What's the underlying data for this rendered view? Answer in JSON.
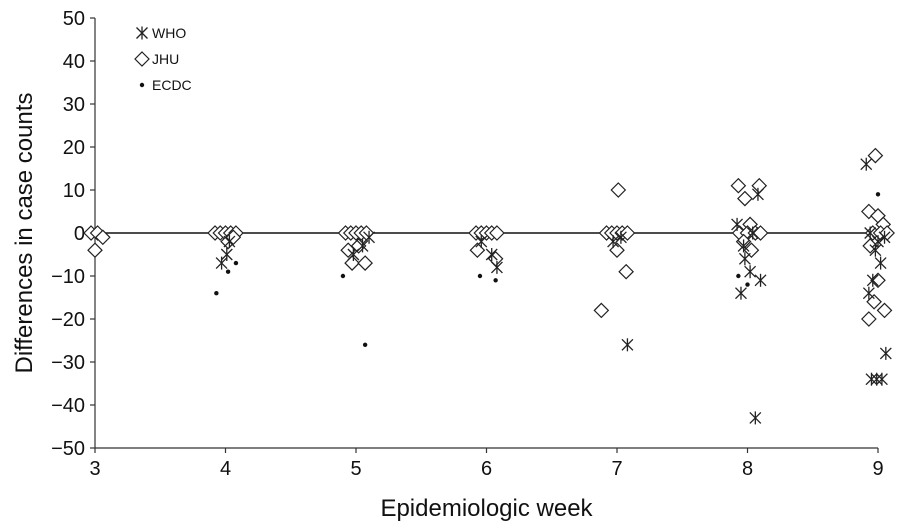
{
  "chart_data": {
    "type": "scatter",
    "xlabel": "Epidemiologic week",
    "ylabel": "Differences in case counts",
    "xlim": [
      3,
      9
    ],
    "ylim": [
      -50,
      50
    ],
    "x_ticks": [
      3,
      4,
      5,
      6,
      7,
      8,
      9
    ],
    "y_ticks": [
      50,
      40,
      30,
      20,
      10,
      0,
      -10,
      -20,
      -30,
      -40,
      -50
    ],
    "reference_line_y": 0,
    "grid": false,
    "legend": {
      "placement": "top-left"
    },
    "series": [
      {
        "name": "WHO",
        "marker": "asterisk",
        "color": "#222222",
        "points": [
          {
            "x": 3.97,
            "y": -7
          },
          {
            "x": 4.01,
            "y": -5
          },
          {
            "x": 4.03,
            "y": -2
          },
          {
            "x": 5.05,
            "y": -3
          },
          {
            "x": 4.98,
            "y": -5
          },
          {
            "x": 5.1,
            "y": -1
          },
          {
            "x": 6.08,
            "y": -8
          },
          {
            "x": 6.04,
            "y": -5
          },
          {
            "x": 5.96,
            "y": -2
          },
          {
            "x": 7.08,
            "y": -26
          },
          {
            "x": 6.97,
            "y": -2
          },
          {
            "x": 7.03,
            "y": -1
          },
          {
            "x": 8.06,
            "y": -43
          },
          {
            "x": 7.95,
            "y": -14
          },
          {
            "x": 8.1,
            "y": -11
          },
          {
            "x": 8.02,
            "y": -9
          },
          {
            "x": 7.98,
            "y": -6
          },
          {
            "x": 8.08,
            "y": 9
          },
          {
            "x": 7.92,
            "y": 2
          },
          {
            "x": 7.97,
            "y": -3
          },
          {
            "x": 8.04,
            "y": 0
          },
          {
            "x": 8.95,
            "y": -34
          },
          {
            "x": 9.03,
            "y": -34
          },
          {
            "x": 8.99,
            "y": -34
          },
          {
            "x": 9.06,
            "y": -28
          },
          {
            "x": 8.93,
            "y": -14
          },
          {
            "x": 8.96,
            "y": -11
          },
          {
            "x": 8.91,
            "y": 16
          },
          {
            "x": 9.02,
            "y": -7
          },
          {
            "x": 8.98,
            "y": -4
          },
          {
            "x": 9.05,
            "y": -1
          },
          {
            "x": 8.94,
            "y": 0
          },
          {
            "x": 9.0,
            "y": -2
          }
        ]
      },
      {
        "name": "JHU",
        "marker": "diamond",
        "color": "#222222",
        "points": [
          {
            "x": 2.97,
            "y": 0
          },
          {
            "x": 3.02,
            "y": 0
          },
          {
            "x": 3.06,
            "y": -1
          },
          {
            "x": 3.0,
            "y": -4
          },
          {
            "x": 3.92,
            "y": 0
          },
          {
            "x": 3.96,
            "y": 0
          },
          {
            "x": 4.0,
            "y": 0
          },
          {
            "x": 4.04,
            "y": 0
          },
          {
            "x": 4.08,
            "y": 0
          },
          {
            "x": 4.02,
            "y": -2
          },
          {
            "x": 4.06,
            "y": -1
          },
          {
            "x": 4.92,
            "y": 0
          },
          {
            "x": 4.96,
            "y": 0
          },
          {
            "x": 5.0,
            "y": 0
          },
          {
            "x": 5.04,
            "y": 0
          },
          {
            "x": 5.08,
            "y": 0
          },
          {
            "x": 4.94,
            "y": -4
          },
          {
            "x": 4.97,
            "y": -7
          },
          {
            "x": 5.07,
            "y": -7
          },
          {
            "x": 5.02,
            "y": -3
          },
          {
            "x": 5.92,
            "y": 0
          },
          {
            "x": 5.96,
            "y": 0
          },
          {
            "x": 6.0,
            "y": 0
          },
          {
            "x": 6.04,
            "y": 0
          },
          {
            "x": 6.08,
            "y": 0
          },
          {
            "x": 5.93,
            "y": -4
          },
          {
            "x": 6.07,
            "y": -6
          },
          {
            "x": 6.92,
            "y": 0
          },
          {
            "x": 6.96,
            "y": 0
          },
          {
            "x": 7.0,
            "y": 0
          },
          {
            "x": 7.04,
            "y": 0
          },
          {
            "x": 7.08,
            "y": 0
          },
          {
            "x": 7.01,
            "y": 10
          },
          {
            "x": 6.88,
            "y": -18
          },
          {
            "x": 7.07,
            "y": -9
          },
          {
            "x": 7.0,
            "y": -4
          },
          {
            "x": 7.93,
            "y": 11
          },
          {
            "x": 8.09,
            "y": 11
          },
          {
            "x": 7.98,
            "y": 8
          },
          {
            "x": 8.02,
            "y": 2
          },
          {
            "x": 7.94,
            "y": 0
          },
          {
            "x": 8.0,
            "y": 0
          },
          {
            "x": 8.06,
            "y": 0
          },
          {
            "x": 8.1,
            "y": 0
          },
          {
            "x": 8.03,
            "y": -4
          },
          {
            "x": 7.97,
            "y": -2
          },
          {
            "x": 8.98,
            "y": 18
          },
          {
            "x": 8.93,
            "y": 5
          },
          {
            "x": 9.0,
            "y": 4
          },
          {
            "x": 9.04,
            "y": 2
          },
          {
            "x": 8.96,
            "y": 0
          },
          {
            "x": 9.02,
            "y": 0
          },
          {
            "x": 9.07,
            "y": 0
          },
          {
            "x": 8.94,
            "y": -3
          },
          {
            "x": 9.0,
            "y": -11
          },
          {
            "x": 8.97,
            "y": -16
          },
          {
            "x": 8.93,
            "y": -20
          },
          {
            "x": 9.05,
            "y": -18
          }
        ]
      },
      {
        "name": "ECDC",
        "marker": "dot",
        "color": "#111111",
        "points": [
          {
            "x": 3.93,
            "y": -14
          },
          {
            "x": 4.08,
            "y": -7
          },
          {
            "x": 4.02,
            "y": -9
          },
          {
            "x": 5.07,
            "y": -26
          },
          {
            "x": 4.9,
            "y": -10
          },
          {
            "x": 5.95,
            "y": -10
          },
          {
            "x": 6.07,
            "y": -11
          },
          {
            "x": 7.93,
            "y": -10
          },
          {
            "x": 8.0,
            "y": -12
          },
          {
            "x": 9.0,
            "y": 9
          }
        ]
      }
    ]
  }
}
